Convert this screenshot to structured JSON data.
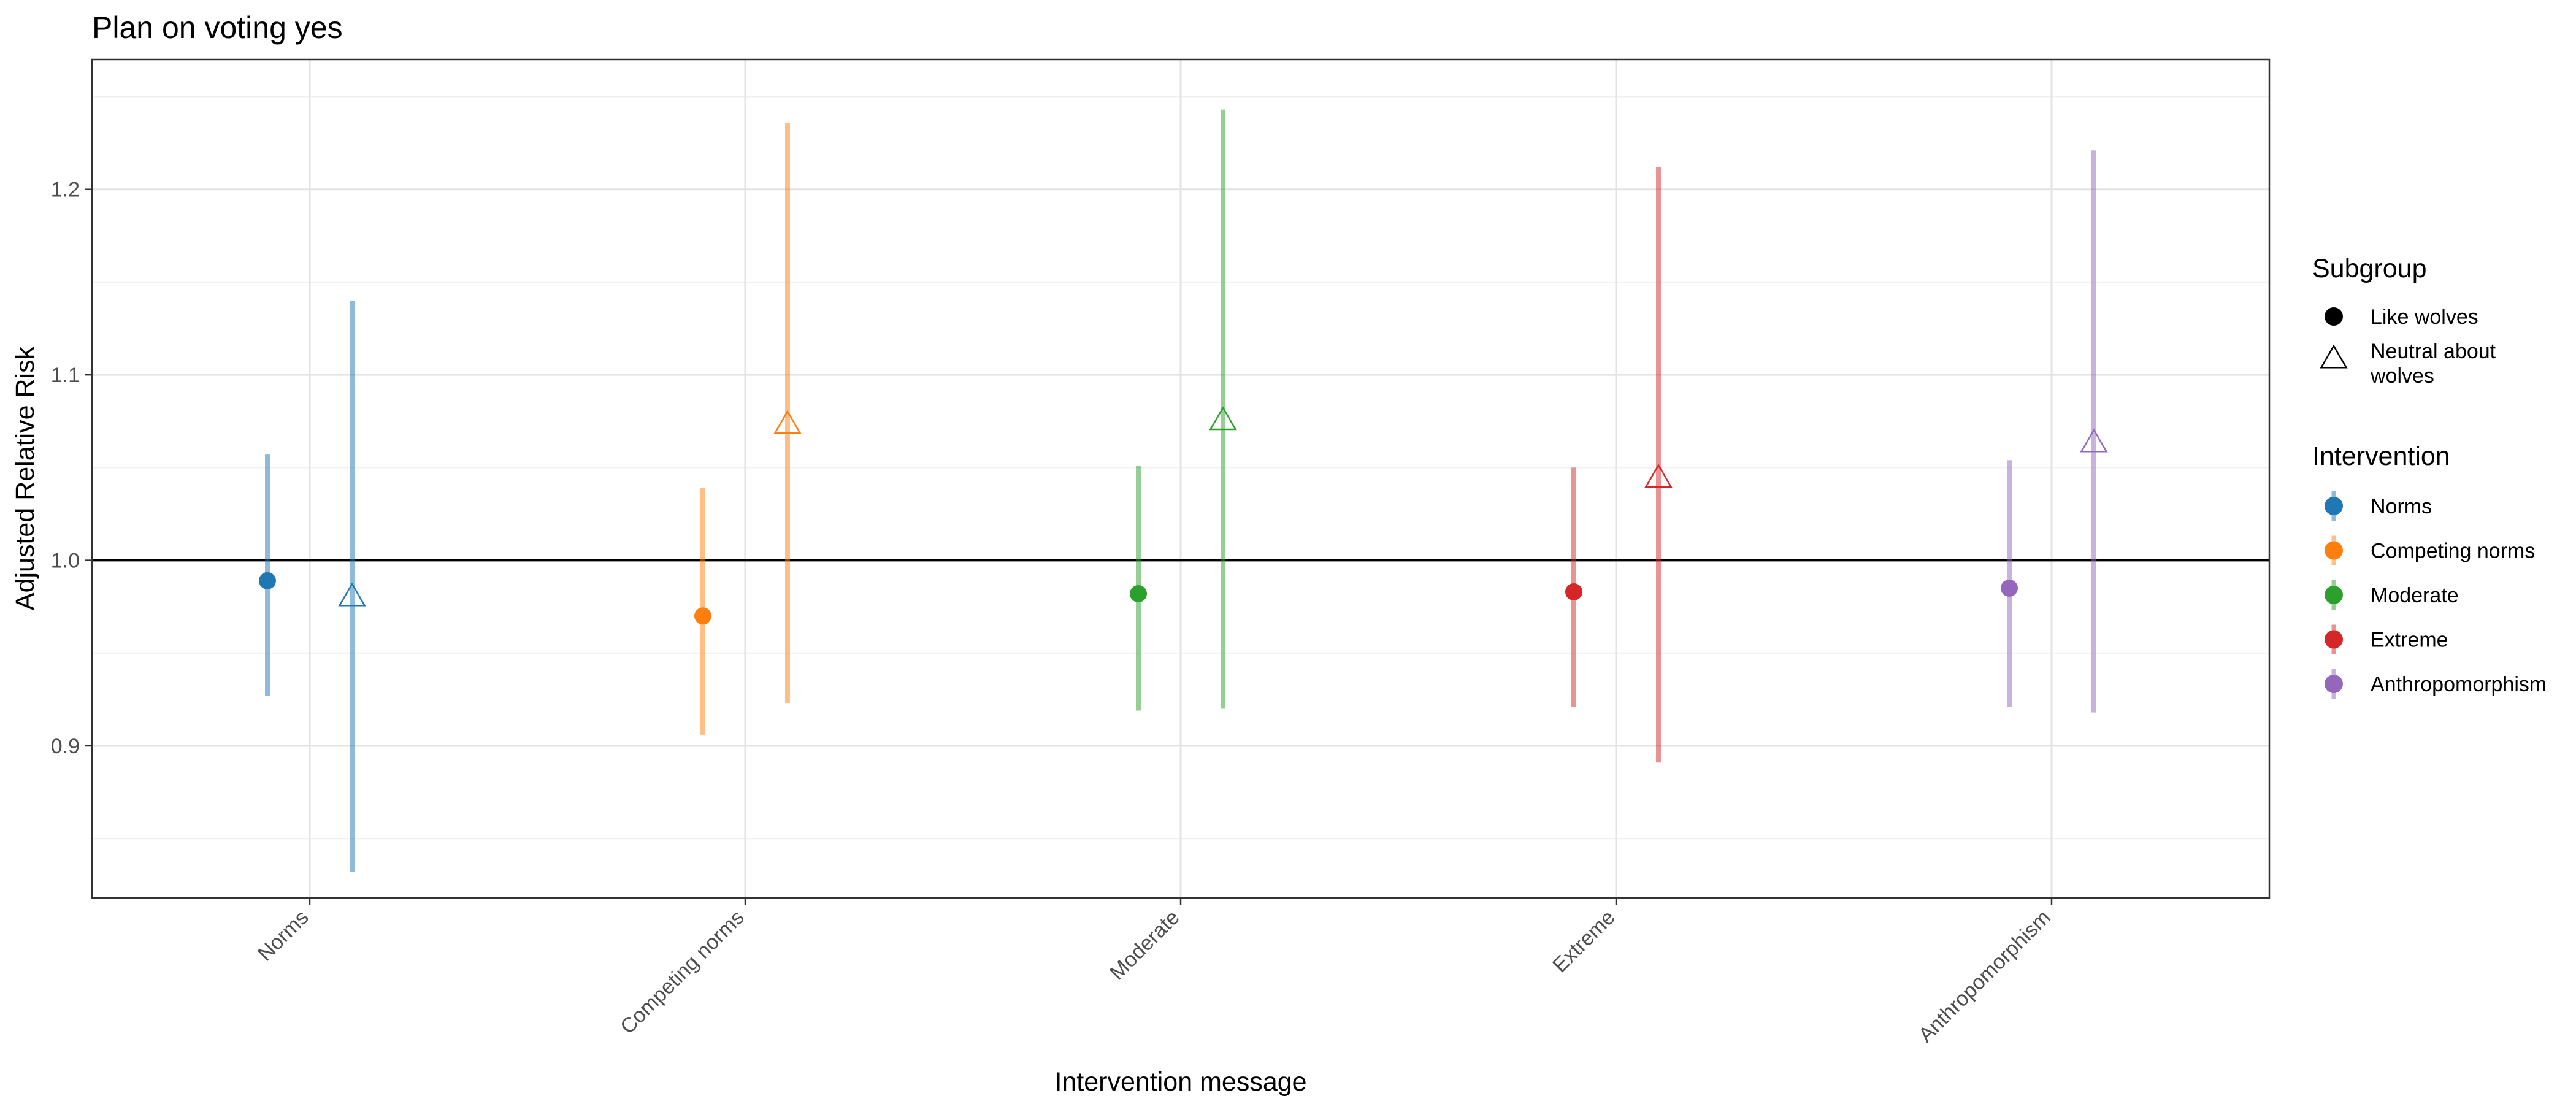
{
  "chart_data": {
    "type": "errorbar",
    "title": "Plan on voting yes",
    "xlabel": "Intervention message",
    "ylabel": "Adjusted Relative Risk",
    "categories": [
      "Norms",
      "Competing norms",
      "Moderate",
      "Extreme",
      "Anthropomorphism"
    ],
    "yticks": [
      "0.9",
      "1.0",
      "1.1",
      "1.2"
    ],
    "ylim": [
      0.818,
      1.27
    ],
    "reference_line": 1.0,
    "grid": true,
    "colors": {
      "Norms": "#1f77b4",
      "Competing norms": "#ff7f0e",
      "Moderate": "#2ca02c",
      "Extreme": "#d62728",
      "Anthropomorphism": "#9467bd"
    },
    "series": [
      {
        "name": "Like wolves",
        "shape": "circle",
        "values": [
          0.989,
          0.97,
          0.982,
          0.983,
          0.985
        ],
        "lower": [
          0.927,
          0.906,
          0.919,
          0.921,
          0.921
        ],
        "upper": [
          1.057,
          1.039,
          1.051,
          1.05,
          1.054
        ]
      },
      {
        "name": "Neutral about wolves",
        "shape": "triangle",
        "values": [
          0.98,
          1.073,
          1.075,
          1.044,
          1.063
        ],
        "lower": [
          0.832,
          0.923,
          0.92,
          0.891,
          0.918
        ],
        "upper": [
          1.14,
          1.236,
          1.243,
          1.212,
          1.221
        ]
      }
    ],
    "legend": {
      "placement": "right",
      "subgroup_title": "Subgroup",
      "subgroup_items": [
        "Like wolves",
        "Neutral about wolves"
      ],
      "intervention_title": "Intervention",
      "intervention_items": [
        "Norms",
        "Competing norms",
        "Moderate",
        "Extreme",
        "Anthropomorphism"
      ]
    }
  }
}
